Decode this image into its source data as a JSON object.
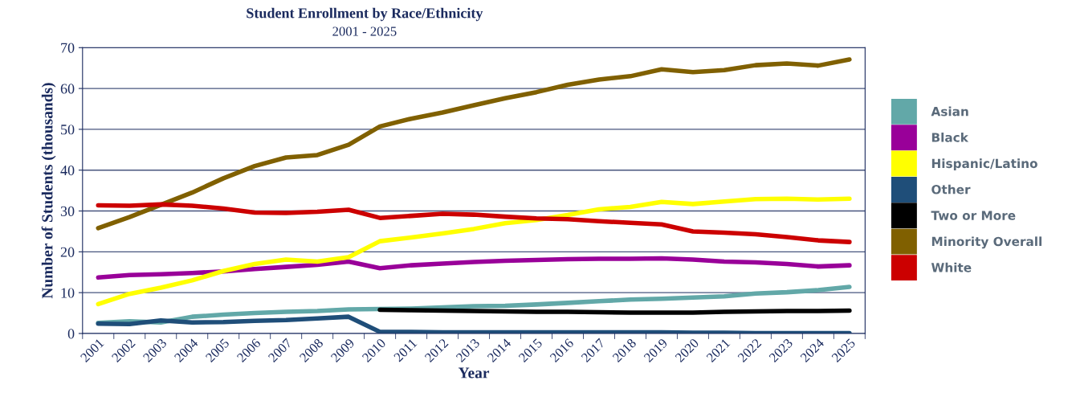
{
  "chart_data": {
    "type": "line",
    "title": "Student Enrollment by Race/Ethnicity",
    "subtitle": "2001 - 2025",
    "xlabel": "Year",
    "ylabel": "Number of Students (thousands)",
    "categories": [
      "2001",
      "2002",
      "2003",
      "2004",
      "2005",
      "2006",
      "2007",
      "2008",
      "2009",
      "2010",
      "2011",
      "2012",
      "2013",
      "2014",
      "2015",
      "2016",
      "2017",
      "2018",
      "2019",
      "2020",
      "2021",
      "2022",
      "2023",
      "2024",
      "2025"
    ],
    "ylim": [
      0,
      70
    ],
    "yticks": [
      0,
      10,
      20,
      30,
      40,
      50,
      60,
      70
    ],
    "grid": "y",
    "legend": "right",
    "marker": "none",
    "line_style": "solid",
    "series": [
      {
        "name": "Asian",
        "color": "#62a8a8",
        "values": [
          2.6,
          3.0,
          2.7,
          4.1,
          4.6,
          5.0,
          5.3,
          5.5,
          5.9,
          6.0,
          6.1,
          6.4,
          6.7,
          6.8,
          7.1,
          7.5,
          7.9,
          8.3,
          8.5,
          8.8,
          9.1,
          9.8,
          10.1,
          10.6,
          11.4
        ]
      },
      {
        "name": "Black",
        "color": "#990099",
        "values": [
          13.7,
          14.3,
          14.5,
          14.8,
          15.2,
          15.8,
          16.3,
          16.8,
          17.6,
          16.0,
          16.7,
          17.1,
          17.5,
          17.8,
          18.0,
          18.2,
          18.3,
          18.3,
          18.4,
          18.1,
          17.6,
          17.4,
          17.0,
          16.4,
          16.7
        ]
      },
      {
        "name": "Hispanic/Latino",
        "color": "#ffff00",
        "values": [
          7.2,
          9.7,
          11.2,
          13.0,
          15.3,
          17.0,
          18.1,
          17.6,
          18.7,
          22.6,
          23.5,
          24.5,
          25.6,
          27.0,
          27.8,
          29.0,
          30.4,
          31.0,
          32.2,
          31.7,
          32.3,
          32.9,
          33.0,
          32.8,
          33.0
        ]
      },
      {
        "name": "Other",
        "color": "#1f4e79",
        "values": [
          2.4,
          2.3,
          3.2,
          2.7,
          2.8,
          3.1,
          3.3,
          3.7,
          4.1,
          0.4,
          0.4,
          0.3,
          0.3,
          0.3,
          0.3,
          0.3,
          0.3,
          0.3,
          0.3,
          0.2,
          0.2,
          0.1,
          0.1,
          0.1,
          0.1
        ]
      },
      {
        "name": "Two or More",
        "color": "#000000",
        "values": [
          null,
          null,
          null,
          null,
          null,
          null,
          null,
          null,
          null,
          5.8,
          5.7,
          5.6,
          5.5,
          5.4,
          5.3,
          5.3,
          5.2,
          5.1,
          5.1,
          5.1,
          5.3,
          5.4,
          5.5,
          5.5,
          5.6
        ]
      },
      {
        "name": "Minority Overall",
        "color": "#806000",
        "values": [
          25.8,
          28.5,
          31.5,
          34.5,
          38.0,
          41.0,
          43.1,
          43.7,
          46.2,
          50.7,
          52.6,
          54.1,
          55.9,
          57.6,
          59.1,
          60.9,
          62.2,
          63.0,
          64.7,
          64.0,
          64.5,
          65.7,
          66.1,
          65.6,
          67.1
        ]
      },
      {
        "name": "White",
        "color": "#cc0000",
        "values": [
          31.4,
          31.3,
          31.6,
          31.3,
          30.6,
          29.6,
          29.5,
          29.8,
          30.3,
          28.3,
          28.8,
          29.3,
          29.1,
          28.6,
          28.2,
          28.0,
          27.5,
          27.1,
          26.7,
          25.0,
          24.7,
          24.3,
          23.6,
          22.8,
          22.4
        ]
      }
    ]
  }
}
